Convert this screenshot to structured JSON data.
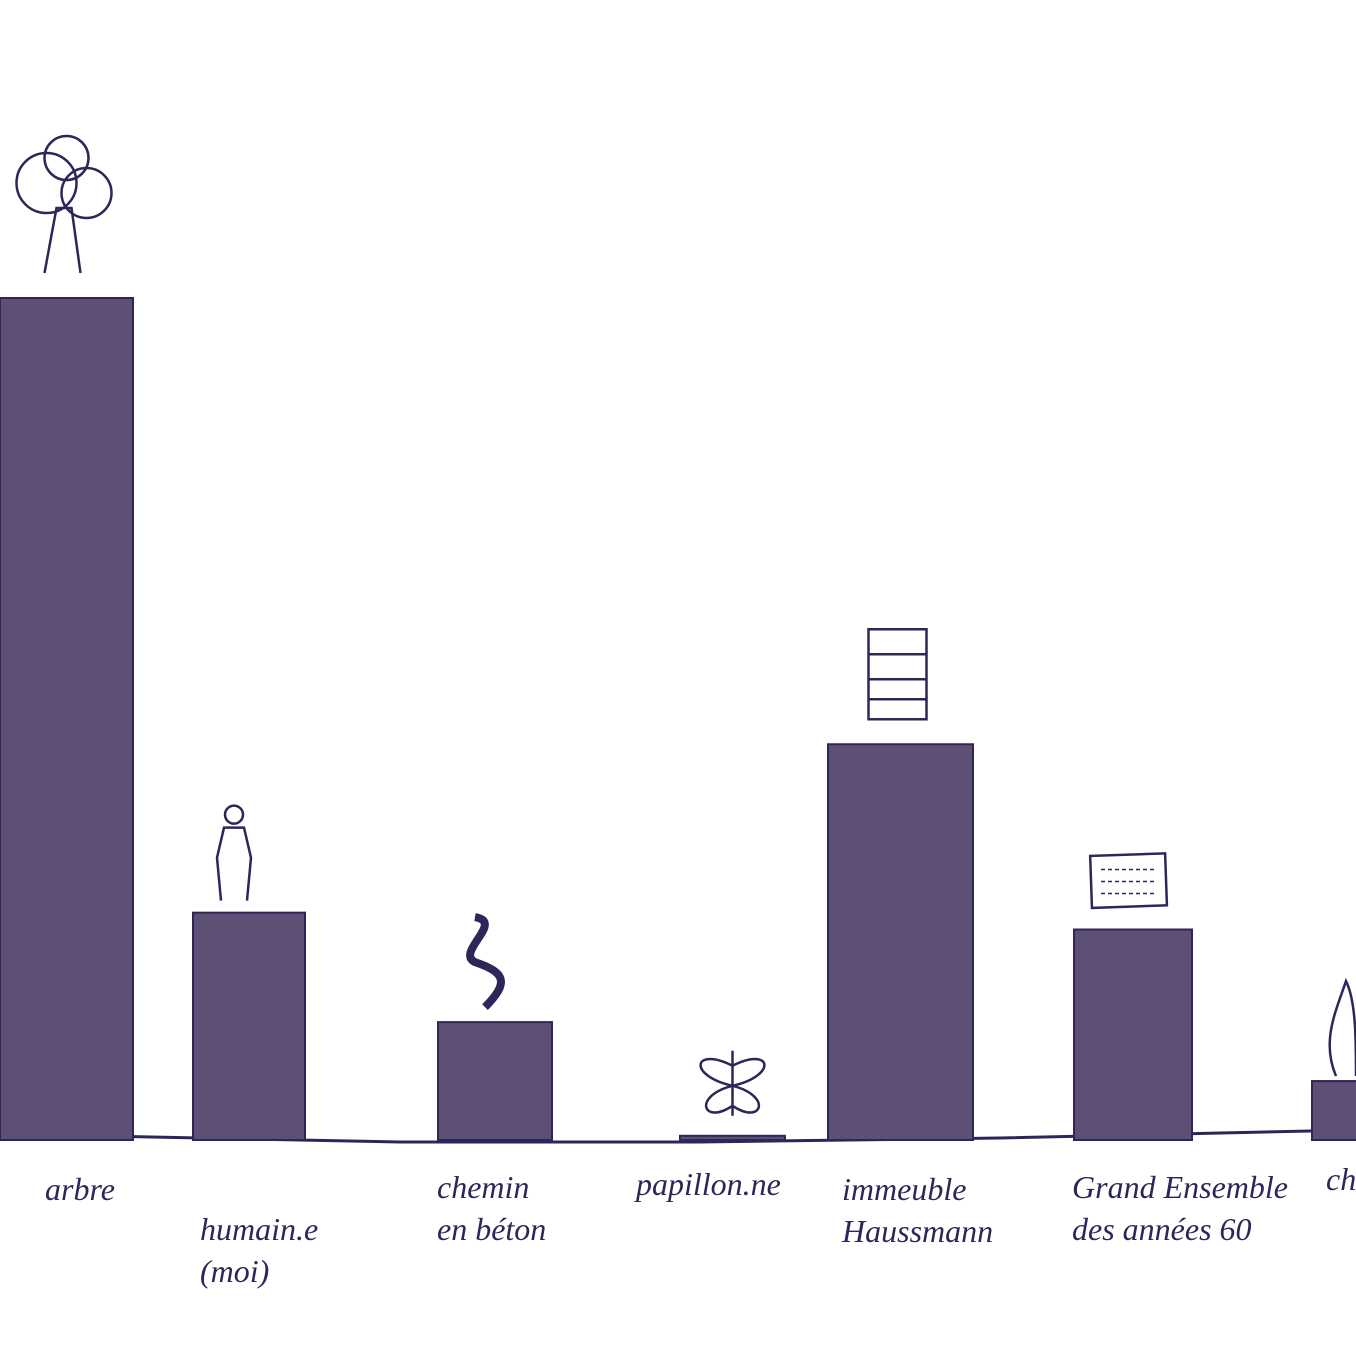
{
  "chart_data": {
    "type": "bar",
    "title": "",
    "xlabel": "",
    "ylabel": "",
    "grid": false,
    "legend": "none",
    "bar_color": "#5e5075",
    "ink_color": "#2e2559",
    "categories": [
      {
        "label": [
          "arbre"
        ],
        "icon": "tree-icon"
      },
      {
        "label": [
          "humain.e",
          "(moi)"
        ],
        "icon": "person-icon"
      },
      {
        "label": [
          "chemin",
          "en béton"
        ],
        "icon": "path-icon"
      },
      {
        "label": [
          "papillon.ne"
        ],
        "icon": "butterfly-icon"
      },
      {
        "label": [
          "immeuble",
          "Haussmann"
        ],
        "icon": "building-icon"
      },
      {
        "label": [
          "Grand Ensemble",
          "des années 60"
        ],
        "icon": "housing-block-icon"
      },
      {
        "label": [
          "ch"
        ],
        "icon": "animal-icon"
      }
    ],
    "values": [
      100,
      27,
      14,
      0.5,
      47,
      25,
      7
    ],
    "ylim": [
      0,
      100
    ]
  }
}
